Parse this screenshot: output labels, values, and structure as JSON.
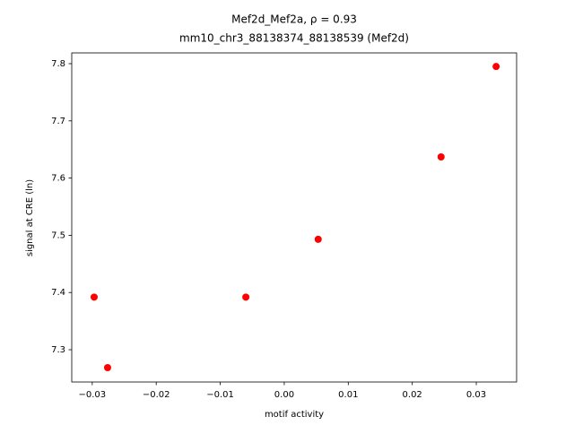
{
  "chart_data": {
    "type": "scatter",
    "title": "Mef2d_Mef2a, ρ = 0.93",
    "subtitle": "mm10_chr3_88138374_88138539 (Mef2d)",
    "x_label": "motif activity",
    "y_label": "signal at CRE (ln)",
    "x": [
      -0.0297,
      -0.0276,
      -0.006,
      0.0053,
      0.0245,
      0.0331
    ],
    "values": [
      7.392,
      7.2687,
      7.392,
      7.493,
      7.637,
      7.795
    ],
    "color": "#ff0000",
    "xlim": [
      -0.0332,
      0.0363
    ],
    "ylim": [
      7.2436,
      7.8188
    ],
    "xticks": [
      {
        "value": -0.03,
        "label": "−0.03"
      },
      {
        "value": -0.02,
        "label": "−0.02"
      },
      {
        "value": -0.01,
        "label": "−0.01"
      },
      {
        "value": 0,
        "label": "0.00"
      },
      0.01,
      0.02,
      0.03
    ],
    "yticks": [
      7.3,
      7.4,
      7.5,
      7.6,
      7.7,
      7.8
    ]
  }
}
